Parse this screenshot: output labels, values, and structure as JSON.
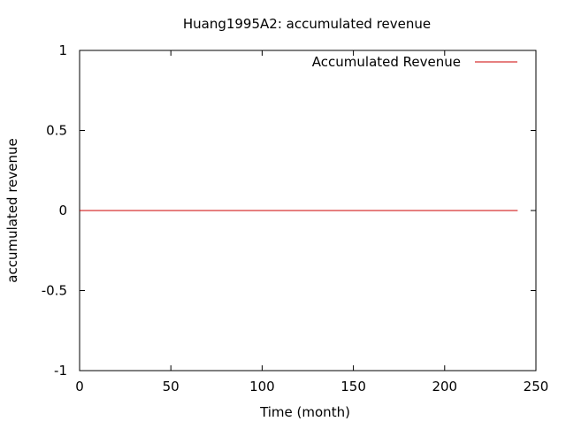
{
  "chart_data": {
    "type": "line",
    "title": "Huang1995A2: accumulated revenue",
    "xlabel": "Time (month)",
    "ylabel": "accumulated revenue",
    "xlim": [
      0,
      250
    ],
    "ylim": [
      -1,
      1
    ],
    "xticks": [
      0,
      50,
      100,
      150,
      200,
      250
    ],
    "yticks": [
      -1,
      -0.5,
      0,
      0.5,
      1
    ],
    "xtick_labels": [
      "0",
      "50",
      "100",
      "150",
      "200",
      "250"
    ],
    "ytick_labels": [
      "-1",
      "-0.5",
      "0",
      "0.5",
      "1"
    ],
    "grid": false,
    "legend_position": "top-right",
    "series": [
      {
        "name": "Accumulated Revenue",
        "color": "#cc0000",
        "x": [
          0,
          240
        ],
        "y": [
          0,
          0
        ]
      }
    ]
  }
}
